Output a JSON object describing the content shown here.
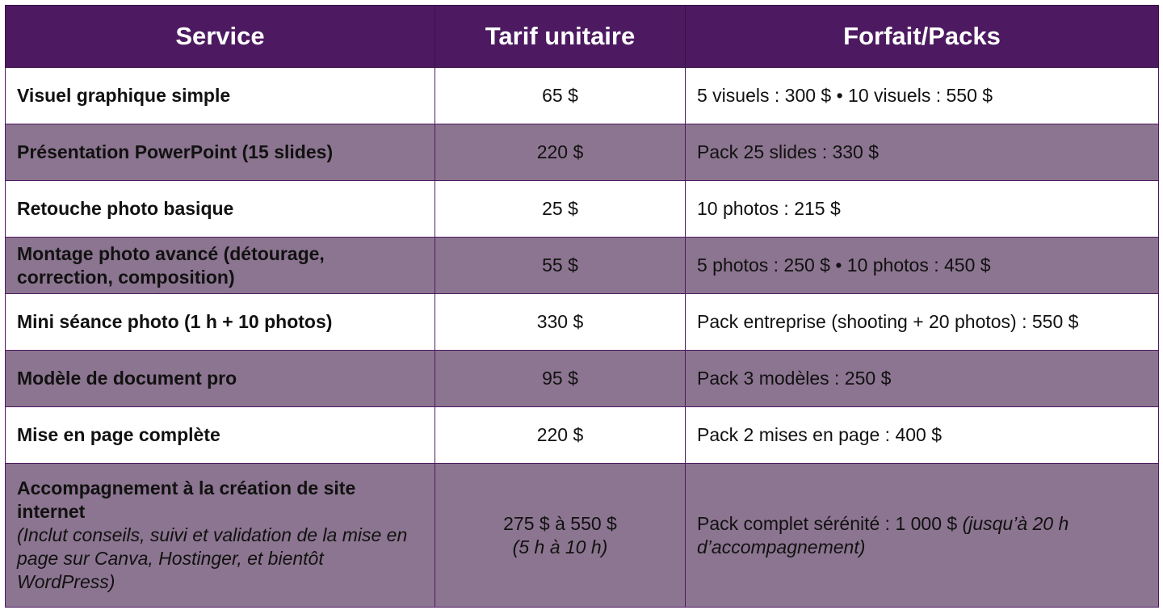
{
  "table": {
    "headers": [
      "Service",
      "Tarif unitaire",
      "Forfait/Packs"
    ],
    "rows": [
      {
        "service": "Visuel graphique simple",
        "price": "65 $",
        "pack": "5 visuels : 300 $ • 10 visuels : 550 $"
      },
      {
        "service": "Présentation PowerPoint (15 slides)",
        "price": "220 $",
        "pack": "Pack 25 slides : 330 $"
      },
      {
        "service": "Retouche photo basique",
        "price": "25 $",
        "pack": "10 photos : 215 $"
      },
      {
        "service": "Montage photo avancé (détourage, correction, composition)",
        "price": "55 $",
        "pack": "5 photos : 250 $ • 10 photos : 450 $"
      },
      {
        "service": "Mini séance photo (1 h + 10 photos)",
        "price": "330 $",
        "pack": "Pack entreprise (shooting + 20 photos) : 550 $"
      },
      {
        "service": "Modèle de document pro",
        "price": "95 $",
        "pack": "Pack 3 modèles : 250 $"
      },
      {
        "service": "Mise en page complète",
        "price": "220 $",
        "pack": "Pack 2 mises en page : 400 $"
      },
      {
        "service": "Accompagnement à la création de site internet",
        "service_note": "(Inclut conseils, suivi et validation de la mise en page sur Canva, Hostinger, et bientôt WordPress)",
        "price": "275 $ à 550 $",
        "price_note": "(5 h à 10 h)",
        "pack": "Pack complet sérénité : 1 000 $",
        "pack_note": "(jusqu’à 20 h d’accompagnement)"
      }
    ]
  },
  "colors": {
    "header_bg": "#4d1a61",
    "row_alt_bg": "#8c7590",
    "row_bg": "#ffffff"
  }
}
